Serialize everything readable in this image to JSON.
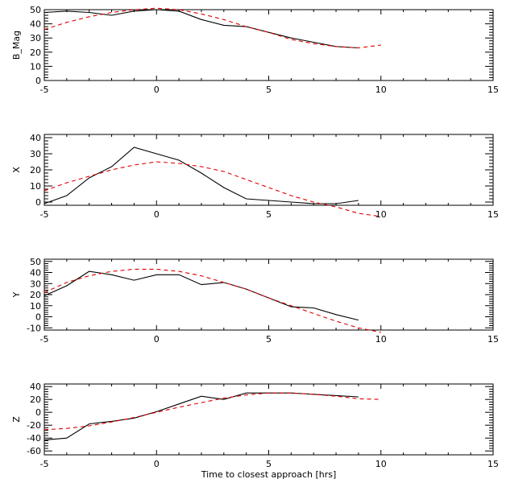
{
  "chart_data": [
    {
      "type": "line",
      "ylabel": "B_Mag",
      "xlim": [
        -5,
        15
      ],
      "ylim": [
        0,
        50
      ],
      "x_ticks": [
        -5,
        0,
        5,
        10,
        15
      ],
      "y_ticks": [
        0,
        10,
        20,
        30,
        40,
        50
      ],
      "series": [
        {
          "color": "#000000",
          "style": "solid",
          "x": [
            -5,
            -4,
            -3,
            -2,
            -1,
            0,
            1,
            2,
            3,
            4,
            5,
            6,
            7,
            8,
            9
          ],
          "y": [
            48,
            49,
            48,
            46,
            49,
            50,
            49,
            43,
            39,
            38,
            34,
            30,
            27,
            24,
            23
          ]
        },
        {
          "color": "#e00000",
          "style": "dashed",
          "x": [
            -5,
            -4,
            -3,
            -2,
            -1,
            0,
            1,
            2,
            3,
            4,
            5,
            6,
            7,
            8,
            9,
            10
          ],
          "y": [
            36,
            41,
            45,
            48,
            50,
            51,
            50,
            47,
            43,
            38,
            34,
            29,
            26,
            24,
            23,
            25
          ]
        }
      ]
    },
    {
      "type": "line",
      "ylabel": "X",
      "xlim": [
        -5,
        15
      ],
      "ylim": [
        -2,
        42
      ],
      "x_ticks": [
        -5,
        0,
        5,
        10,
        15
      ],
      "y_ticks": [
        0,
        10,
        20,
        30,
        40
      ],
      "series": [
        {
          "color": "#000000",
          "style": "solid",
          "x": [
            -5,
            -4,
            -3,
            -2,
            -1,
            0,
            1,
            2,
            3,
            4,
            5,
            6,
            7,
            8,
            9
          ],
          "y": [
            -1,
            4,
            15,
            22,
            34,
            30,
            26,
            18,
            9,
            2,
            1,
            0,
            -1,
            -1,
            1
          ]
        },
        {
          "color": "#e00000",
          "style": "dashed",
          "x": [
            -5,
            -4,
            -3,
            -2,
            -1,
            0,
            1,
            2,
            3,
            4,
            5,
            6,
            7,
            8,
            9,
            10
          ],
          "y": [
            7,
            12,
            16,
            20,
            23,
            25,
            24,
            22,
            19,
            14,
            9,
            4,
            0,
            -3,
            -7,
            -9
          ]
        }
      ]
    },
    {
      "type": "line",
      "ylabel": "Y",
      "xlim": [
        -5,
        15
      ],
      "ylim": [
        -12,
        52
      ],
      "x_ticks": [
        -5,
        0,
        5,
        10,
        15
      ],
      "y_ticks": [
        -10,
        0,
        10,
        20,
        30,
        40,
        50
      ],
      "series": [
        {
          "color": "#000000",
          "style": "solid",
          "x": [
            -5,
            -4,
            -3,
            -2,
            -1,
            0,
            1,
            2,
            3,
            4,
            5,
            6,
            7,
            8,
            9
          ],
          "y": [
            19,
            28,
            41,
            38,
            33,
            38,
            38,
            29,
            31,
            25,
            17,
            9,
            8,
            2,
            -3
          ]
        },
        {
          "color": "#e00000",
          "style": "dashed",
          "x": [
            -5,
            -4,
            -3,
            -2,
            -1,
            0,
            1,
            2,
            3,
            4,
            5,
            6,
            7,
            8,
            9,
            10
          ],
          "y": [
            22,
            31,
            37,
            41,
            43,
            43,
            41,
            37,
            31,
            25,
            17,
            10,
            3,
            -4,
            -10,
            -14
          ]
        }
      ]
    },
    {
      "type": "line",
      "ylabel": "Z",
      "xlabel": "Time to closest approach [hrs]",
      "xlim": [
        -5,
        15
      ],
      "ylim": [
        -66,
        44
      ],
      "x_ticks": [
        -5,
        0,
        5,
        10,
        15
      ],
      "y_ticks": [
        -60,
        -40,
        -20,
        0,
        20,
        40
      ],
      "series": [
        {
          "color": "#000000",
          "style": "solid",
          "x": [
            -5,
            -4,
            -3,
            -2,
            -1,
            0,
            1,
            2,
            3,
            4,
            5,
            6,
            7,
            8,
            9
          ],
          "y": [
            -43,
            -40,
            -18,
            -14,
            -9,
            1,
            13,
            25,
            20,
            30,
            30,
            30,
            28,
            26,
            24
          ]
        },
        {
          "color": "#e00000",
          "style": "dashed",
          "x": [
            -5,
            -4,
            -3,
            -2,
            -1,
            0,
            1,
            2,
            3,
            4,
            5,
            6,
            7,
            8,
            9,
            10
          ],
          "y": [
            -27,
            -25,
            -21,
            -15,
            -8,
            0,
            8,
            15,
            22,
            27,
            30,
            30,
            28,
            25,
            21,
            20
          ]
        }
      ]
    }
  ]
}
